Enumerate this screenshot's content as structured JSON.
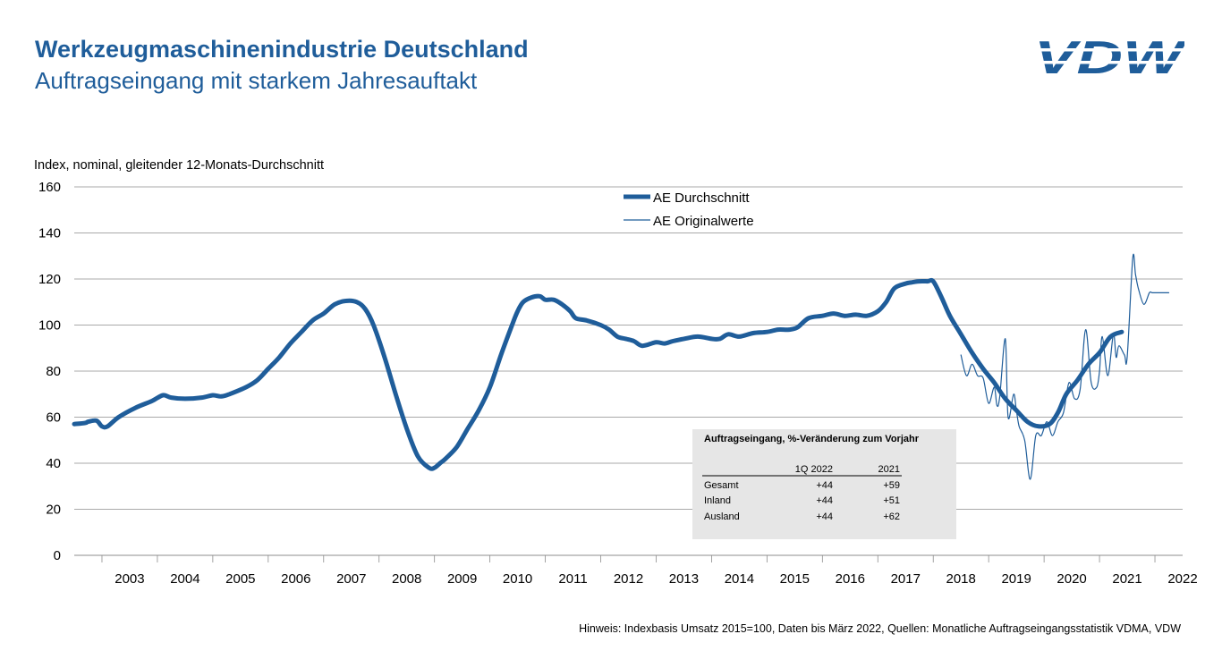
{
  "header": {
    "title": "Werkzeugmaschinenindustrie Deutschland",
    "subtitle": "Auftragseingang mit starkem Jahresauftakt"
  },
  "logo": {
    "text": "VDW",
    "color": "#1f5d9a"
  },
  "footnote": "Hinweis: Indexbasis Umsatz 2015=100, Daten bis März 2022, Quellen: Monatliche Auftragseingangsstatistik VDMA, VDW",
  "colors": {
    "series": "#1f5d9a",
    "grid": "#8c8c8c",
    "table_bg": "#e6e6e6"
  },
  "chart_data": {
    "type": "line",
    "ylabel": "Index, nominal, gleitender 12-Monats-Durchschnitt",
    "ylim": [
      0,
      160
    ],
    "yticks": [
      0,
      20,
      40,
      60,
      80,
      100,
      120,
      140,
      160
    ],
    "xlim": [
      2002.5,
      2022.5
    ],
    "xticks": [
      "2003",
      "2004",
      "2005",
      "2006",
      "2007",
      "2008",
      "2009",
      "2010",
      "2011",
      "2012",
      "2013",
      "2014",
      "2015",
      "2016",
      "2017",
      "2018",
      "2019",
      "2020",
      "2021",
      "2022"
    ],
    "grid": true,
    "legend_position": "top-center",
    "series": [
      {
        "name": "AE Durchschnitt",
        "style": "thick",
        "x": [
          2002.5,
          2002.7,
          2002.75,
          2002.9,
          2003.0,
          2003.1,
          2003.3,
          2003.6,
          2003.9,
          2004.1,
          2004.25,
          2004.5,
          2004.8,
          2005.0,
          2005.15,
          2005.3,
          2005.6,
          2005.8,
          2006.0,
          2006.2,
          2006.4,
          2006.6,
          2006.8,
          2007.0,
          2007.2,
          2007.4,
          2007.6,
          2007.75,
          2007.9,
          2008.1,
          2008.3,
          2008.5,
          2008.7,
          2008.9,
          2009.0,
          2009.1,
          2009.2,
          2009.4,
          2009.6,
          2009.8,
          2010.0,
          2010.2,
          2010.4,
          2010.5,
          2010.6,
          2010.75,
          2010.9,
          2011.0,
          2011.15,
          2011.3,
          2011.45,
          2011.55,
          2011.75,
          2012.0,
          2012.15,
          2012.3,
          2012.45,
          2012.6,
          2012.75,
          2013.0,
          2013.15,
          2013.3,
          2013.5,
          2013.75,
          2014.0,
          2014.15,
          2014.3,
          2014.5,
          2014.75,
          2015.0,
          2015.2,
          2015.4,
          2015.55,
          2015.75,
          2016.0,
          2016.2,
          2016.4,
          2016.6,
          2016.8,
          2017.0,
          2017.15,
          2017.3,
          2017.5,
          2017.6,
          2017.75,
          2017.9,
          2018.0,
          2018.15,
          2018.3,
          2018.5,
          2018.7,
          2018.9,
          2019.1,
          2019.3,
          2019.5,
          2019.7,
          2019.9,
          2020.1,
          2020.25,
          2020.4,
          2020.6,
          2020.8,
          2021.0,
          2021.2,
          2021.4
        ],
        "y": [
          57,
          57.5,
          58,
          58.5,
          56,
          56,
          60,
          64,
          67,
          69.5,
          68.5,
          68,
          68.5,
          69.5,
          69,
          70,
          73,
          76,
          81,
          86,
          92,
          97,
          102,
          105,
          109,
          110.5,
          110,
          107,
          100,
          86,
          70,
          55,
          43,
          38,
          38,
          40,
          42,
          47,
          55,
          63,
          73,
          87,
          100,
          106,
          110,
          112,
          112.5,
          111,
          111,
          109,
          106,
          103,
          102,
          100,
          98,
          95,
          94,
          93,
          91,
          92.5,
          92,
          93,
          94,
          95,
          94,
          94,
          96,
          95,
          96.5,
          97,
          98,
          98,
          99,
          103,
          104,
          105,
          104,
          104.5,
          104,
          106,
          110,
          116,
          118,
          118.5,
          119,
          119,
          119,
          112,
          104,
          96,
          88,
          81,
          75,
          68,
          63,
          58,
          56,
          57,
          62,
          70,
          76,
          83,
          88,
          95,
          97
        ]
      },
      {
        "name": "AE Originalwerte",
        "style": "thin",
        "x": [
          2018.5,
          2018.6,
          2018.7,
          2018.8,
          2018.9,
          2019.0,
          2019.1,
          2019.15,
          2019.2,
          2019.3,
          2019.35,
          2019.45,
          2019.5,
          2019.55,
          2019.65,
          2019.75,
          2019.85,
          2019.95,
          2020.05,
          2020.15,
          2020.25,
          2020.35,
          2020.45,
          2020.55,
          2020.65,
          2020.75,
          2020.85,
          2020.95,
          2021.0,
          2021.05,
          2021.15,
          2021.25,
          2021.3,
          2021.35,
          2021.45,
          2021.5,
          2021.6,
          2021.65,
          2021.7,
          2021.8,
          2021.9,
          2021.95,
          2022.0,
          2022.05,
          2022.15,
          2022.2,
          2022.25
        ],
        "y": [
          87,
          78,
          83,
          78,
          77,
          66,
          73,
          65,
          69,
          94,
          60,
          70,
          63,
          56,
          50,
          33,
          52,
          52,
          58,
          52,
          58,
          62,
          75,
          68,
          72,
          98,
          75,
          73,
          80,
          95,
          78,
          96,
          86,
          91,
          87,
          86,
          129,
          122,
          116,
          109,
          114,
          114,
          114,
          114,
          114,
          114,
          114
        ]
      }
    ]
  },
  "table": {
    "title": "Auftragseingang, %-Veränderung zum Vorjahr",
    "columns": [
      "",
      "1Q 2022",
      "2021"
    ],
    "rows": [
      [
        "Gesamt",
        "+44",
        "+59"
      ],
      [
        "Inland",
        "+44",
        "+51"
      ],
      [
        "Ausland",
        "+44",
        "+62"
      ]
    ]
  }
}
